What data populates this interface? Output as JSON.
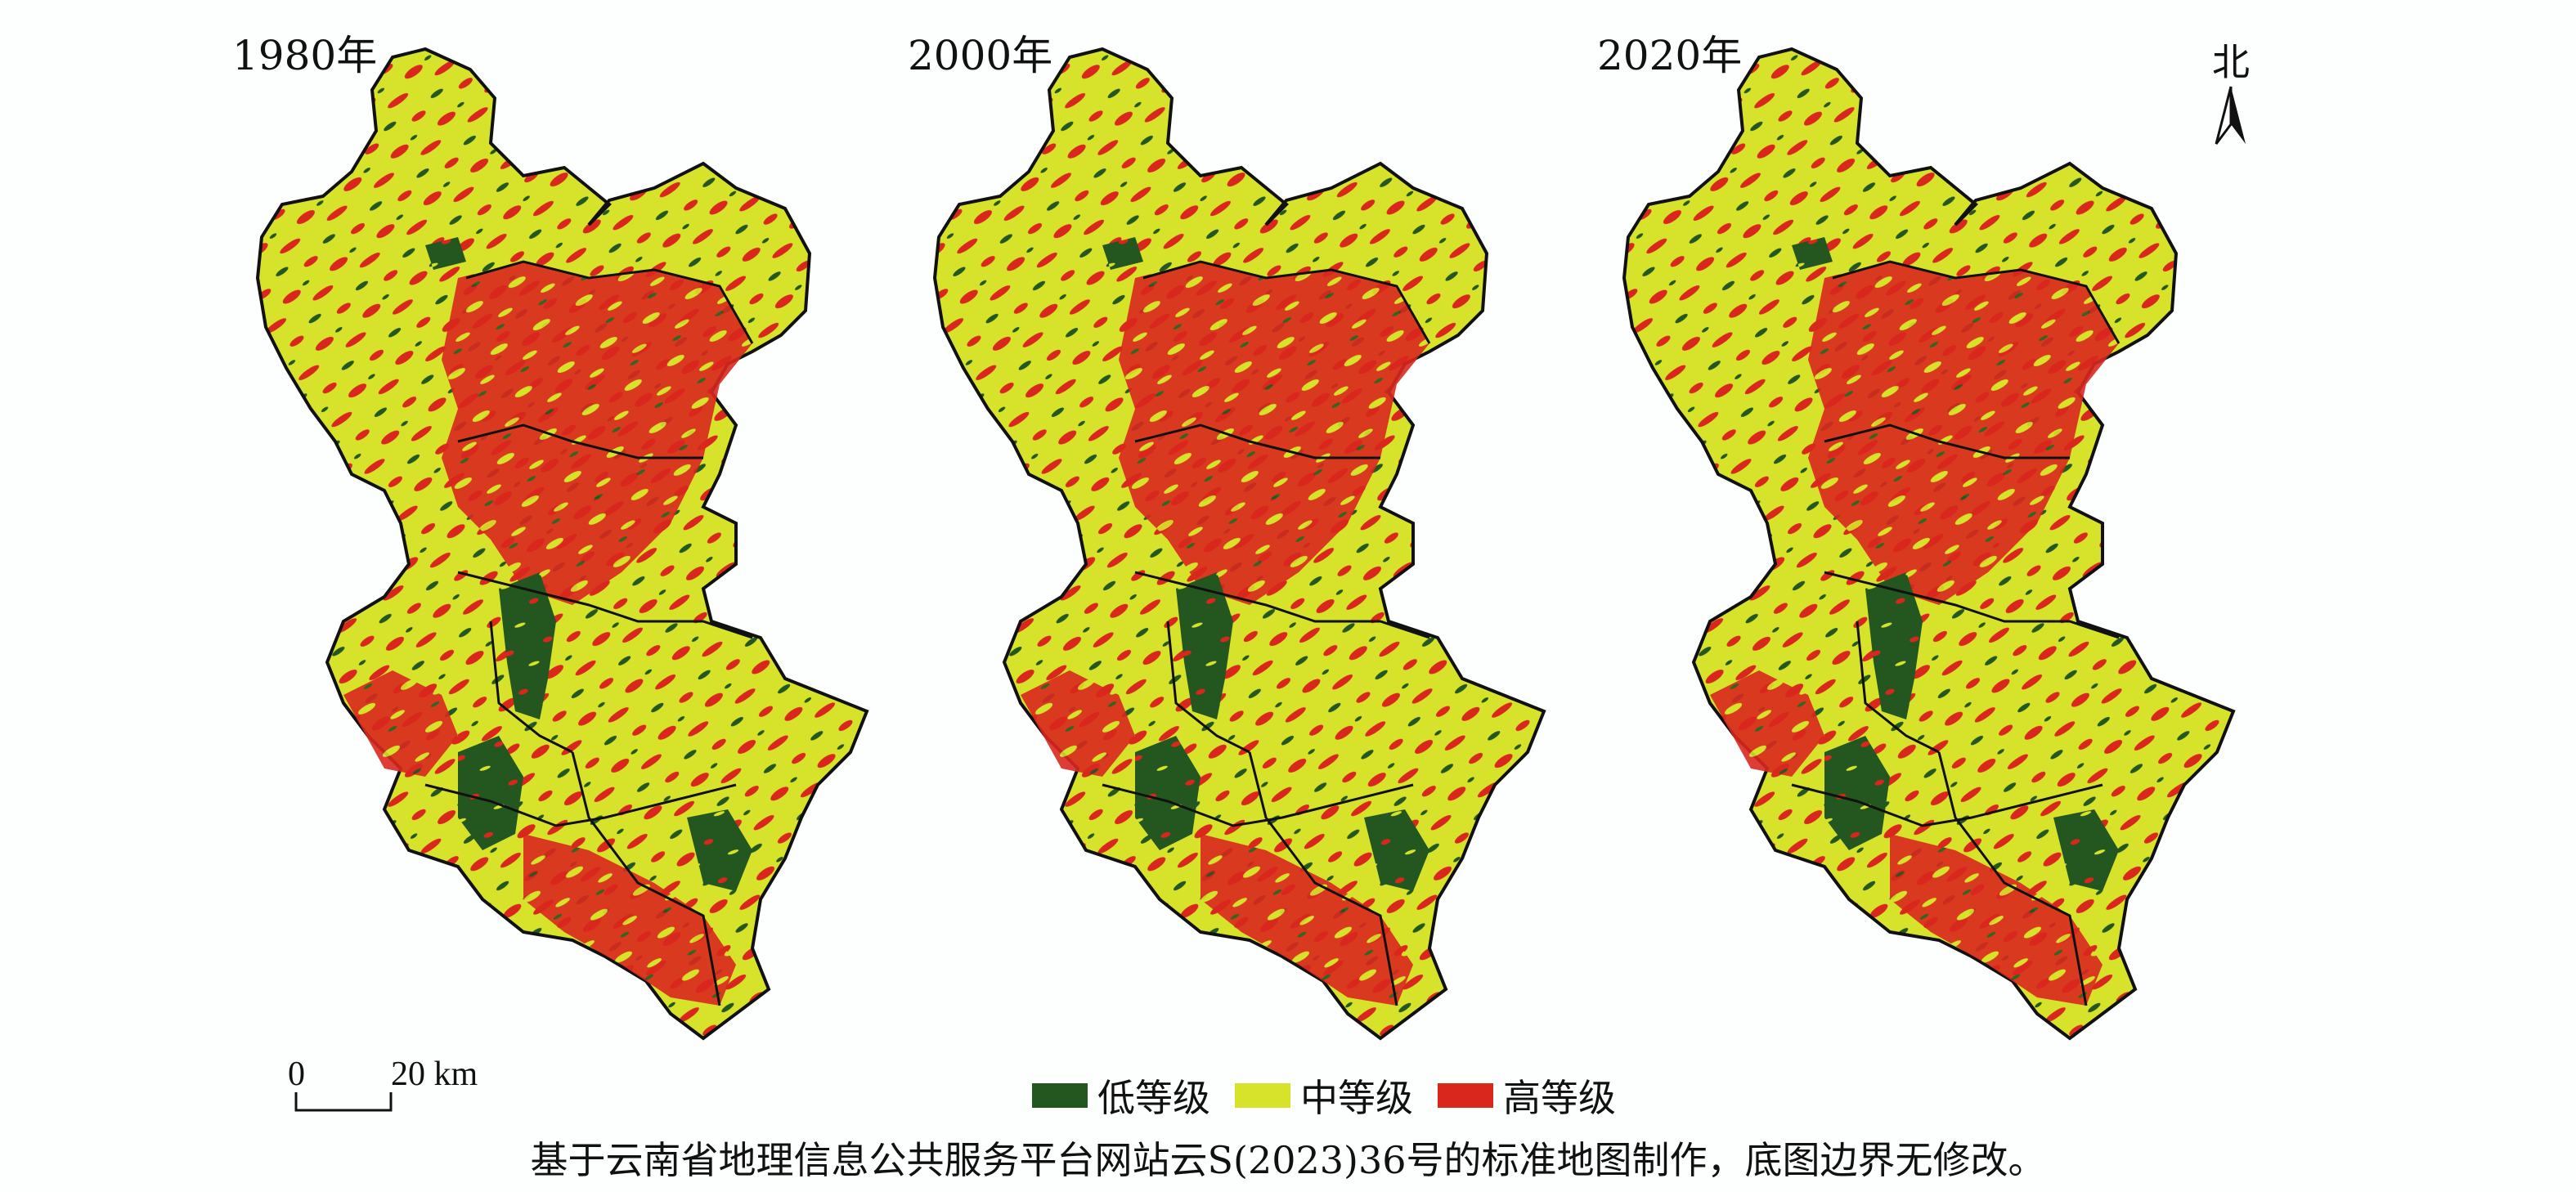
{
  "panels": [
    {
      "year": "1980年"
    },
    {
      "year": "2000年"
    },
    {
      "year": "2020年"
    }
  ],
  "north": {
    "label": "北"
  },
  "scale": {
    "zero": "0",
    "distance": "20 km"
  },
  "legend": {
    "items": [
      {
        "label": "低等级",
        "color": "#24561f"
      },
      {
        "label": "中等级",
        "color": "#d6e32a"
      },
      {
        "label": "高等级",
        "color": "#d9271e"
      }
    ]
  },
  "caption": "基于云南省地理信息公共服务平台网站云S(2023)36号的标准地图制作，底图边界无修改。",
  "colors": {
    "low": "#24561f",
    "mid": "#d6e32a",
    "high": "#d9271e",
    "boundary": "#111111"
  }
}
